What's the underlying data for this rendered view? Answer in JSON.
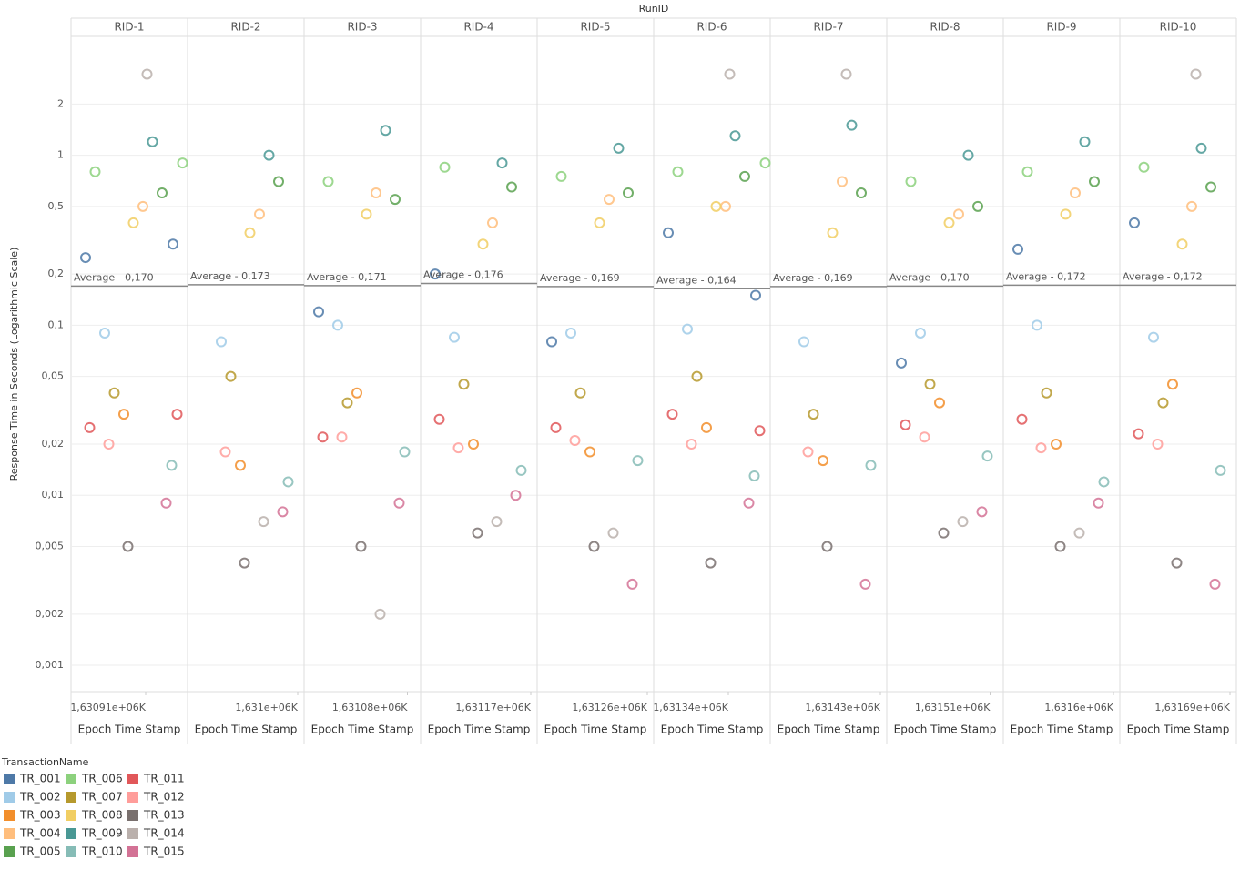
{
  "chart_data": {
    "type": "scatter",
    "title": "RunID",
    "y_label": "Response Time in Seconds (Logarithmic Scale)",
    "x_label": "Epoch Time Stamp",
    "log_y": true,
    "grid": true,
    "ylim": [
      0.0007,
      5
    ],
    "yticks": [
      {
        "value": 0.001,
        "label": "0,001"
      },
      {
        "value": 0.002,
        "label": "0,002"
      },
      {
        "value": 0.005,
        "label": "0,005"
      },
      {
        "value": 0.01,
        "label": "0,01"
      },
      {
        "value": 0.02,
        "label": "0,02"
      },
      {
        "value": 0.05,
        "label": "0,05"
      },
      {
        "value": 0.1,
        "label": "0,1"
      },
      {
        "value": 0.2,
        "label": "0,2"
      },
      {
        "value": 0.5,
        "label": "0,5"
      },
      1,
      2
    ],
    "panels": [
      {
        "label": "RID-1",
        "xlim": [
          1630858,
          1630938
        ],
        "xtick": {
          "value": 1630910,
          "label": "1,63091e+06K"
        },
        "average": 0.17,
        "average_label": "Average - 0,170"
      },
      {
        "label": "RID-2",
        "xlim": [
          1630922,
          1631002
        ],
        "xtick": {
          "value": 1631000,
          "label": "1,631e+06K"
        },
        "average": 0.173,
        "average_label": "Average - 0,173"
      },
      {
        "label": "RID-3",
        "xlim": [
          1631007,
          1631087
        ],
        "xtick": {
          "value": 1631080,
          "label": "1,63108e+06K"
        },
        "average": 0.171,
        "average_label": "Average - 0,171"
      },
      {
        "label": "RID-4",
        "xlim": [
          1631092,
          1631172
        ],
        "xtick": {
          "value": 1631170,
          "label": "1,63117e+06K"
        },
        "average": 0.176,
        "average_label": "Average - 0,176"
      },
      {
        "label": "RID-5",
        "xlim": [
          1631182,
          1631262
        ],
        "xtick": {
          "value": 1631260,
          "label": "1,63126e+06K"
        },
        "average": 0.169,
        "average_label": "Average - 0,169"
      },
      {
        "label": "RID-6",
        "xlim": [
          1631288,
          1631368
        ],
        "xtick": {
          "value": 1631340,
          "label": "1,63134e+06K"
        },
        "average": 0.164,
        "average_label": "Average - 0,164"
      },
      {
        "label": "RID-7",
        "xlim": [
          1631352,
          1631432
        ],
        "xtick": {
          "value": 1631430,
          "label": "1,63143e+06K"
        },
        "average": 0.169,
        "average_label": "Average - 0,169"
      },
      {
        "label": "RID-8",
        "xlim": [
          1631437,
          1631517
        ],
        "xtick": {
          "value": 1631510,
          "label": "1,63151e+06K"
        },
        "average": 0.17,
        "average_label": "Average - 0,170"
      },
      {
        "label": "RID-9",
        "xlim": [
          1631522,
          1631602
        ],
        "xtick": {
          "value": 1631600,
          "label": "1,6316e+06K"
        },
        "average": 0.172,
        "average_label": "Average - 0,172"
      },
      {
        "label": "RID-10",
        "xlim": [
          1631612,
          1631692
        ],
        "xtick": {
          "value": 1631690,
          "label": "1,63169e+06K"
        },
        "average": 0.172,
        "average_label": "Average - 0,172"
      }
    ],
    "legend_title": "TransactionName",
    "series": [
      {
        "name": "TR_001",
        "color": "#4e79a7",
        "x": [
          1630866,
          1630930,
          1631015,
          1631100,
          1631190,
          1631296,
          1631360,
          1631445,
          1631530,
          1631620
        ],
        "values": [
          0.25,
          0.3,
          0.12,
          0.2,
          0.08,
          0.35,
          0.15,
          0.06,
          0.28,
          0.4
        ]
      },
      {
        "name": "TR_002",
        "color": "#a0cbe8",
        "x": [
          1630880,
          1630944,
          1631029,
          1631114,
          1631204,
          1631310,
          1631374,
          1631459,
          1631544,
          1631634
        ],
        "values": [
          0.09,
          0.08,
          0.1,
          0.085,
          0.09,
          0.095,
          0.08,
          0.09,
          0.1,
          0.085
        ]
      },
      {
        "name": "TR_003",
        "color": "#f28e2b",
        "x": [
          1630894,
          1630958,
          1631043,
          1631128,
          1631218,
          1631324,
          1631388,
          1631473,
          1631558,
          1631648
        ],
        "values": [
          0.03,
          0.015,
          0.04,
          0.02,
          0.018,
          0.025,
          0.016,
          0.035,
          0.02,
          0.045
        ]
      },
      {
        "name": "TR_004",
        "color": "#ffbe7d",
        "x": [
          1630908,
          1630972,
          1631057,
          1631142,
          1631232,
          1631338,
          1631402,
          1631487,
          1631572,
          1631662
        ],
        "values": [
          0.5,
          0.45,
          0.6,
          0.4,
          0.55,
          0.5,
          0.7,
          0.45,
          0.6,
          0.5
        ]
      },
      {
        "name": "TR_005",
        "color": "#59a14f",
        "x": [
          1630922,
          1630986,
          1631071,
          1631156,
          1631246,
          1631352,
          1631416,
          1631501,
          1631586,
          1631676
        ],
        "values": [
          0.6,
          0.7,
          0.55,
          0.65,
          0.6,
          0.75,
          0.6,
          0.5,
          0.7,
          0.65
        ]
      },
      {
        "name": "TR_006",
        "color": "#8cd17d",
        "x": [
          1630873,
          1630937,
          1631022,
          1631107,
          1631197,
          1631303,
          1631367,
          1631452,
          1631537,
          1631627
        ],
        "values": [
          0.8,
          0.9,
          0.7,
          0.85,
          0.75,
          0.8,
          0.9,
          0.7,
          0.8,
          0.85
        ]
      },
      {
        "name": "TR_007",
        "color": "#b6992d",
        "x": [
          1630887,
          1630951,
          1631036,
          1631121,
          1631211,
          1631317,
          1631381,
          1631466,
          1631551,
          1631641
        ],
        "values": [
          0.04,
          0.05,
          0.035,
          0.045,
          0.04,
          0.05,
          0.03,
          0.045,
          0.04,
          0.035
        ]
      },
      {
        "name": "TR_008",
        "color": "#f1ce63",
        "x": [
          1630901,
          1630965,
          1631050,
          1631135,
          1631225,
          1631331,
          1631395,
          1631480,
          1631565,
          1631655
        ],
        "values": [
          0.4,
          0.35,
          0.45,
          0.3,
          0.4,
          0.5,
          0.35,
          0.4,
          0.45,
          0.3
        ]
      },
      {
        "name": "TR_009",
        "color": "#499894",
        "x": [
          1630915,
          1630979,
          1631064,
          1631149,
          1631239,
          1631345,
          1631409,
          1631494,
          1631579,
          1631669
        ],
        "values": [
          1.2,
          1.0,
          1.4,
          0.9,
          1.1,
          1.3,
          1.5,
          1.0,
          1.2,
          1.1
        ]
      },
      {
        "name": "TR_010",
        "color": "#86bcb6",
        "x": [
          1630929,
          1630993,
          1631078,
          1631163,
          1631253,
          1631359,
          1631423,
          1631508,
          1631593,
          1631683
        ],
        "values": [
          0.015,
          0.012,
          0.018,
          0.014,
          0.016,
          0.013,
          0.015,
          0.017,
          0.012,
          0.014
        ]
      },
      {
        "name": "TR_011",
        "color": "#e15759",
        "x": [
          1630869,
          1630933,
          1631018,
          1631103,
          1631193,
          1631299,
          1631363,
          1631448,
          1631533,
          1631623
        ],
        "values": [
          0.025,
          0.03,
          0.022,
          0.028,
          0.025,
          0.03,
          0.024,
          0.026,
          0.028,
          0.023
        ]
      },
      {
        "name": "TR_012",
        "color": "#ff9d9a",
        "x": [
          1630883,
          1630947,
          1631032,
          1631117,
          1631207,
          1631313,
          1631377,
          1631462,
          1631547,
          1631637
        ],
        "values": [
          0.02,
          0.018,
          0.022,
          0.019,
          0.021,
          0.02,
          0.018,
          0.022,
          0.019,
          0.02
        ]
      },
      {
        "name": "TR_013",
        "color": "#79706e",
        "x": [
          1630897,
          1630961,
          1631046,
          1631131,
          1631221,
          1631327,
          1631391,
          1631476,
          1631561,
          1631651
        ],
        "values": [
          0.005,
          0.004,
          0.005,
          0.006,
          0.005,
          0.004,
          0.005,
          0.006,
          0.005,
          0.004
        ]
      },
      {
        "name": "TR_014",
        "color": "#bab0ac",
        "x": [
          1630911,
          1630975,
          1631060,
          1631145,
          1631235,
          1631341,
          1631405,
          1631490,
          1631575,
          1631665
        ],
        "values": [
          3,
          0.007,
          0.002,
          0.007,
          0.006,
          3,
          3,
          0.007,
          0.006,
          3
        ]
      },
      {
        "name": "TR_015",
        "color": "#d37295",
        "x": [
          1630925,
          1630989,
          1631074,
          1631159,
          1631249,
          1631355,
          1631419,
          1631504,
          1631589,
          1631679
        ],
        "values": [
          0.009,
          0.008,
          0.009,
          0.01,
          0.003,
          0.009,
          0.003,
          0.008,
          0.009,
          0.003
        ]
      }
    ]
  }
}
